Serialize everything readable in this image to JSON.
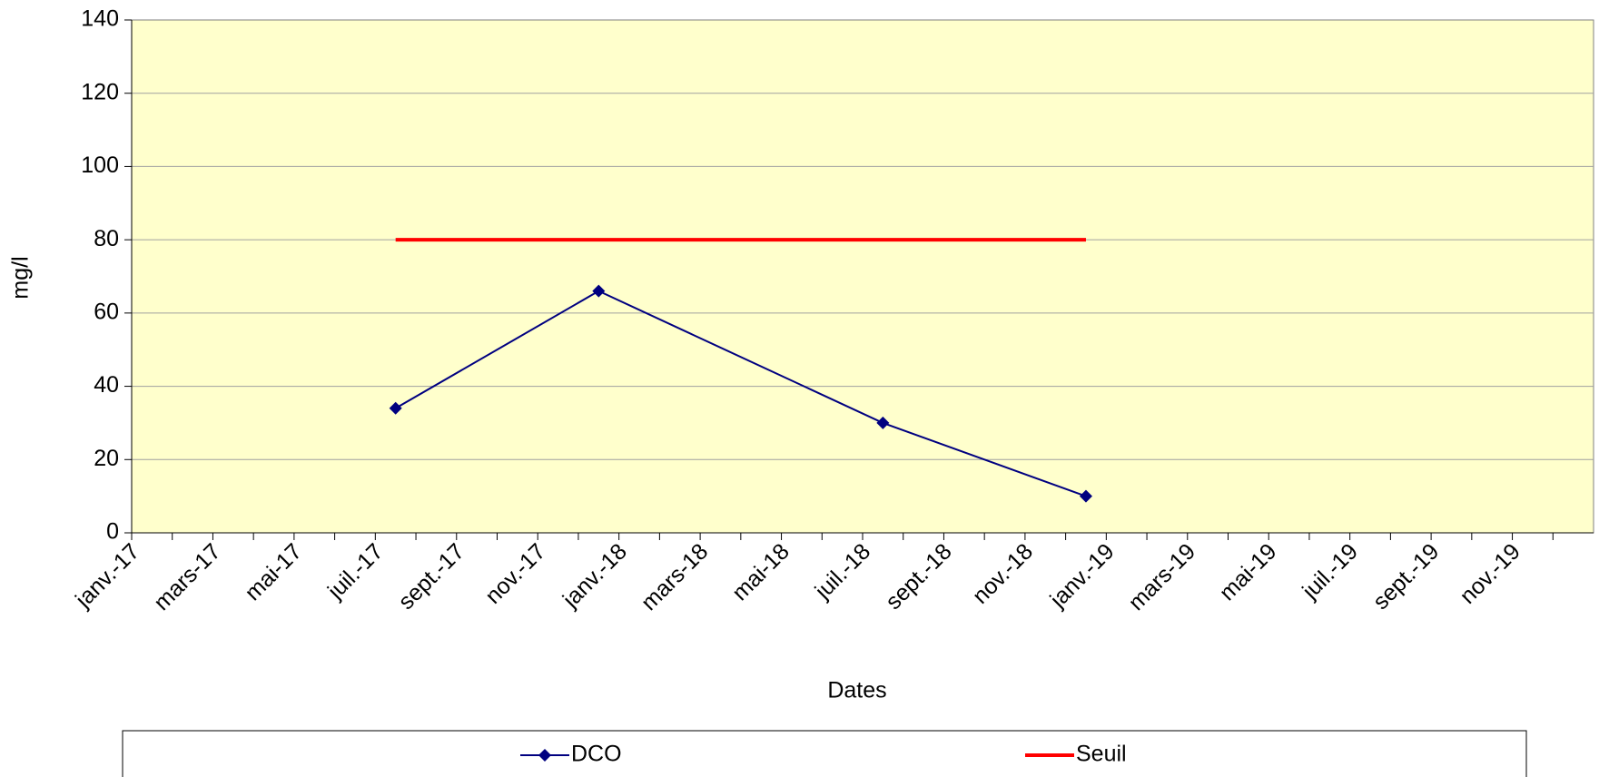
{
  "chart_data": {
    "type": "line",
    "x_label": "Dates",
    "y_label": "mg/l",
    "series": [
      {
        "name": "DCO",
        "color": "#000080",
        "marker": "diamond",
        "x": [
          "2017-07",
          "2017-12",
          "2018-07",
          "2018-12"
        ],
        "values": [
          34,
          66,
          30,
          10
        ]
      },
      {
        "name": "Seuil",
        "color": "#ff0000",
        "x": [
          "2017-07",
          "2018-12"
        ],
        "values": [
          80,
          80
        ]
      }
    ],
    "xlim": [
      "2017-01",
      "2020-01"
    ],
    "xticks": [
      {
        "value": "2017-01",
        "label": "janv.-17"
      },
      {
        "value": "2017-03",
        "label": "mars-17"
      },
      {
        "value": "2017-05",
        "label": "mai-17"
      },
      {
        "value": "2017-07",
        "label": "juil.-17"
      },
      {
        "value": "2017-09",
        "label": "sept.-17"
      },
      {
        "value": "2017-11",
        "label": "nov.-17"
      },
      {
        "value": "2018-01",
        "label": "janv.-18"
      },
      {
        "value": "2018-03",
        "label": "mars-18"
      },
      {
        "value": "2018-05",
        "label": "mai-18"
      },
      {
        "value": "2018-07",
        "label": "juil.-18"
      },
      {
        "value": "2018-09",
        "label": "sept.-18"
      },
      {
        "value": "2018-11",
        "label": "nov.-18"
      },
      {
        "value": "2019-01",
        "label": "janv.-19"
      },
      {
        "value": "2019-03",
        "label": "mars-19"
      },
      {
        "value": "2019-05",
        "label": "mai-19"
      },
      {
        "value": "2019-07",
        "label": "juil.-19"
      },
      {
        "value": "2019-09",
        "label": "sept.-19"
      },
      {
        "value": "2019-11",
        "label": "nov.-19"
      }
    ],
    "ylim": [
      0,
      140
    ],
    "yticks": [
      0,
      20,
      40,
      60,
      80,
      100,
      120,
      140
    ],
    "grid": true,
    "legend": "bottom",
    "plot_background": "#ffffcc"
  }
}
